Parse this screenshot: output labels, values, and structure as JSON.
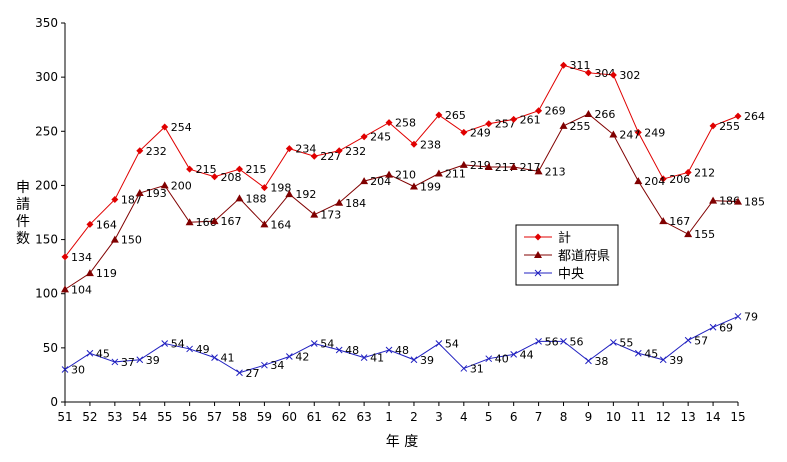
{
  "chart_data": {
    "type": "line",
    "xlabel": "年 度",
    "ylabel": "申請件数",
    "ylim": [
      0,
      350
    ],
    "yticks": [
      0,
      50,
      100,
      150,
      200,
      250,
      300,
      350
    ],
    "grid": false,
    "legend_position": "center-right",
    "categories": [
      "51",
      "52",
      "53",
      "54",
      "55",
      "56",
      "57",
      "58",
      "59",
      "60",
      "61",
      "62",
      "63",
      "1",
      "2",
      "3",
      "4",
      "5",
      "6",
      "7",
      "8",
      "9",
      "10",
      "11",
      "12",
      "13",
      "14",
      "15"
    ],
    "series": [
      {
        "name": "計",
        "color": "#e00000",
        "marker": "diamond",
        "values": [
          134,
          164,
          187,
          232,
          254,
          215,
          208,
          215,
          198,
          234,
          227,
          232,
          245,
          258,
          238,
          265,
          249,
          257,
          261,
          269,
          311,
          304,
          302,
          249,
          206,
          212,
          255,
          264
        ]
      },
      {
        "name": "都道府県",
        "color": "#800000",
        "marker": "triangle",
        "values": [
          104,
          119,
          150,
          193,
          200,
          166,
          167,
          188,
          164,
          192,
          173,
          184,
          204,
          210,
          199,
          211,
          219,
          217,
          217,
          213,
          255,
          266,
          247,
          204,
          167,
          155,
          186,
          185
        ]
      },
      {
        "name": "中央",
        "color": "#2020c0",
        "marker": "x",
        "values": [
          30,
          45,
          37,
          39,
          54,
          49,
          41,
          27,
          34,
          42,
          54,
          48,
          41,
          48,
          39,
          54,
          31,
          40,
          44,
          56,
          56,
          38,
          55,
          45,
          39,
          57,
          69,
          79
        ]
      }
    ]
  }
}
